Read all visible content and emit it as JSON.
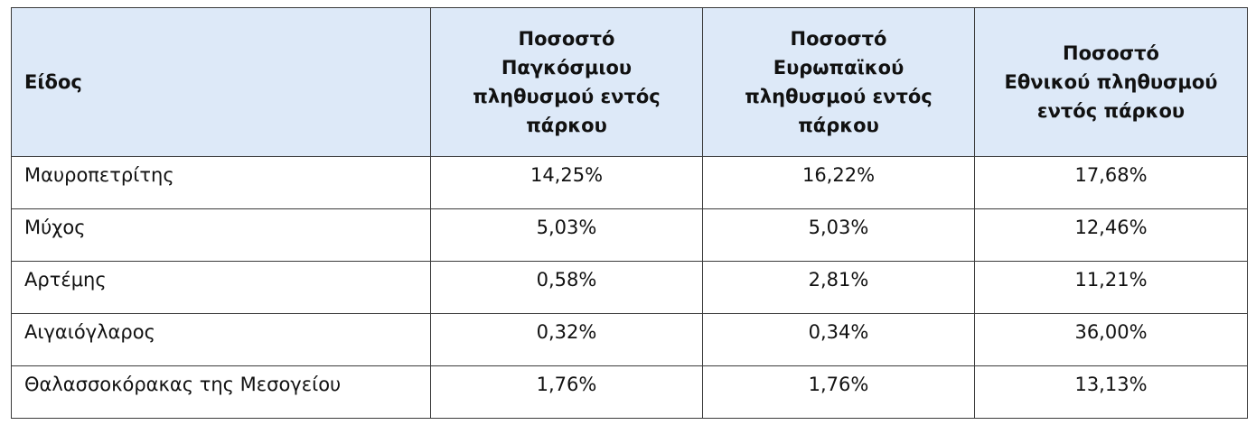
{
  "table": {
    "header": [
      [
        "Είδος"
      ],
      [
        "Ποσοστό",
        "Παγκόσμιου",
        "πληθυσμού εντός",
        "πάρκου"
      ],
      [
        "Ποσοστό",
        "Ευρωπαϊκού",
        "πληθυσμού εντός",
        "πάρκου"
      ],
      [
        "Ποσοστό",
        "Εθνικού πληθυσμού",
        "εντός πάρκου"
      ]
    ],
    "rows": [
      [
        "Μαυροπετρίτης",
        "14,25%",
        "16,22%",
        "17,68%"
      ],
      [
        "Μύχος",
        "5,03%",
        "5,03%",
        "12,46%"
      ],
      [
        "Αρτέμης",
        "0,58%",
        "2,81%",
        "11,21%"
      ],
      [
        "Αιγαιόγλαρος",
        "0,32%",
        "0,34%",
        "36,00%"
      ],
      [
        "Θαλασσοκόρακας της Μεσογείου",
        "1,76%",
        "1,76%",
        "13,13%"
      ]
    ]
  }
}
